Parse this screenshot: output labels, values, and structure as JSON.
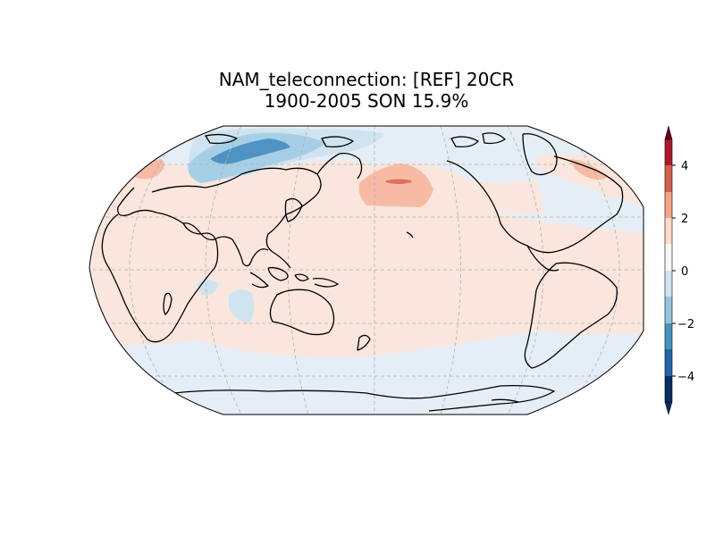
{
  "title_line1": "NAM_teleconnection: [REF] 20CR",
  "title_line2": "1900-2005 SON 15.9%",
  "colorbar": {
    "ticks": [
      "4",
      "2",
      "0",
      "−2",
      "−4"
    ],
    "colors": [
      "#67001f",
      "#b2182b",
      "#d6604d",
      "#f4a582",
      "#fddbc7",
      "#f7f7f7",
      "#d1e5f0",
      "#92c5de",
      "#4393c3",
      "#2166ac",
      "#053061"
    ]
  },
  "map": {
    "projection": "Robinson",
    "central_longitude": 180,
    "field_colors": {
      "ocean_background": "#e5eef6",
      "positive_weak": "#fae6dc",
      "positive_moderate": "#f7bba5",
      "positive_strong": "#e0705c",
      "negative_weak": "#cfe3f0",
      "negative_moderate": "#a6cfe6",
      "negative_strong": "#4f93c5"
    },
    "coastline_color": "#000000",
    "gridline_color": "#b0b0b0"
  }
}
